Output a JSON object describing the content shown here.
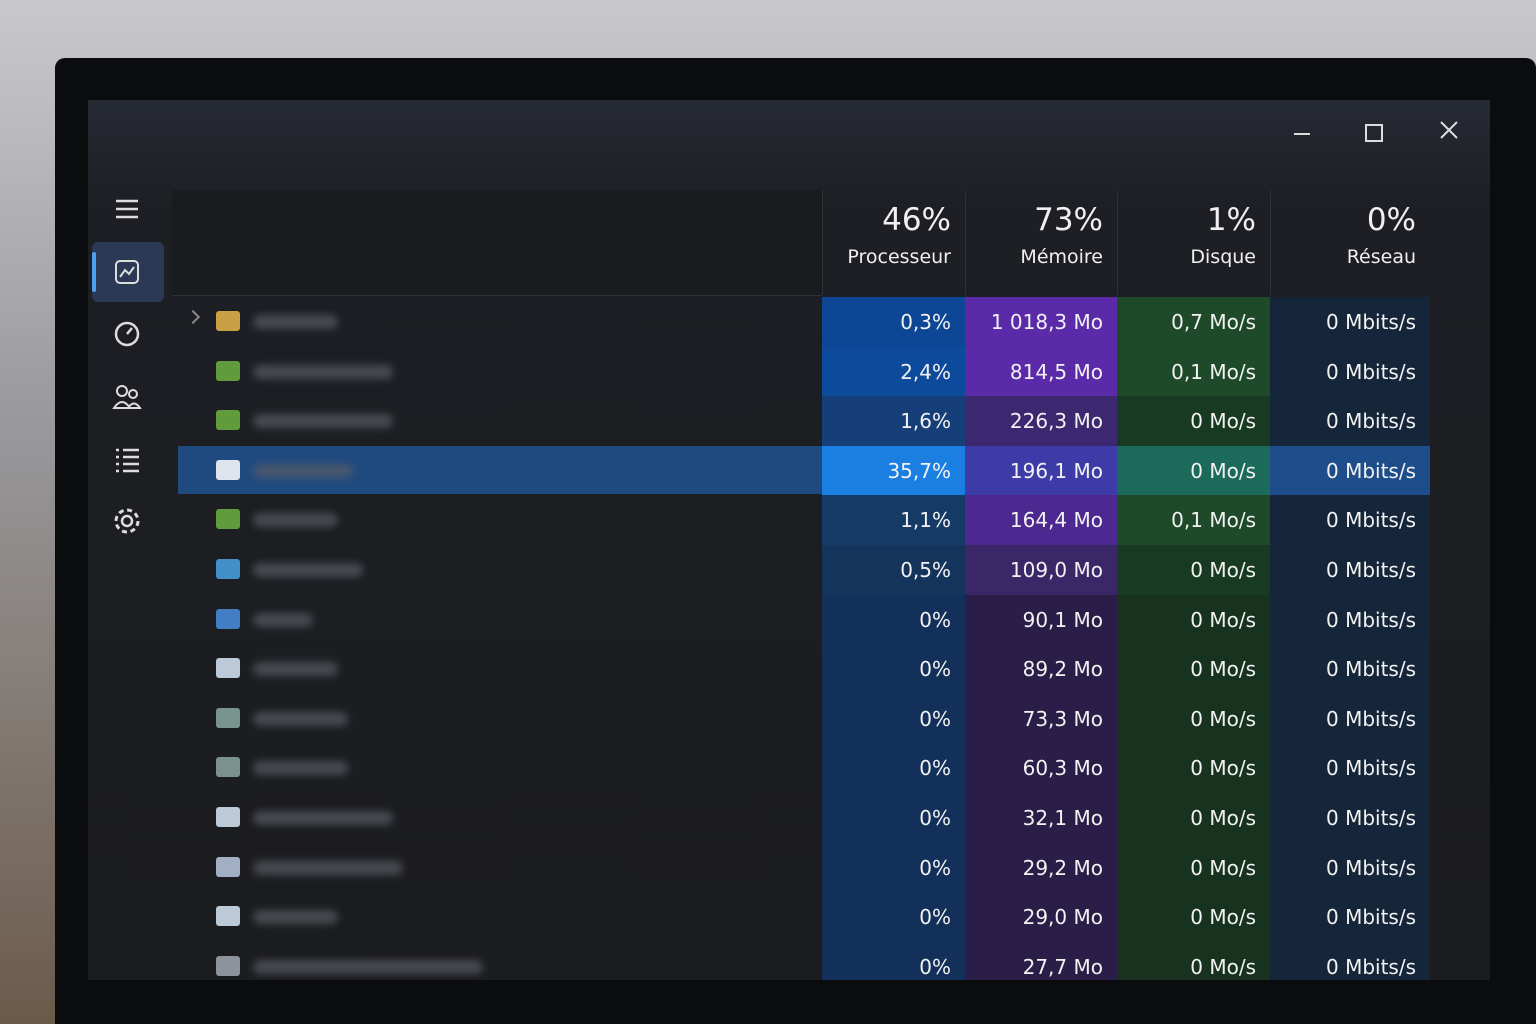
{
  "table": {
    "columns": [
      {
        "percent": "46%",
        "label": "Processeur"
      },
      {
        "percent": "73%",
        "label": "Mémoire"
      },
      {
        "percent": "1%",
        "label": "Disque"
      },
      {
        "percent": "0%",
        "label": "Réseau"
      }
    ],
    "rows": [
      [
        "0,3%",
        "1 018,3 Mo",
        "0,7 Mo/s",
        "0 Mbits/s"
      ],
      [
        "2,4%",
        "814,5 Mo",
        "0,1 Mo/s",
        "0 Mbits/s"
      ],
      [
        "1,6%",
        "226,3 Mo",
        "0 Mo/s",
        "0 Mbits/s"
      ],
      [
        "35,7%",
        "196,1 Mo",
        "0 Mo/s",
        "0 Mbits/s"
      ],
      [
        "1,1%",
        "164,4 Mo",
        "0,1 Mo/s",
        "0 Mbits/s"
      ],
      [
        "0,5%",
        "109,0 Mo",
        "0 Mo/s",
        "0 Mbits/s"
      ],
      [
        "0%",
        "90,1 Mo",
        "0 Mo/s",
        "0 Mbits/s"
      ],
      [
        "0%",
        "89,2 Mo",
        "0 Mo/s",
        "0 Mbits/s"
      ],
      [
        "0%",
        "73,3 Mo",
        "0 Mo/s",
        "0 Mbits/s"
      ],
      [
        "0%",
        "60,3 Mo",
        "0 Mo/s",
        "0 Mbits/s"
      ],
      [
        "0%",
        "32,1 Mo",
        "0 Mo/s",
        "0 Mbits/s"
      ],
      [
        "0%",
        "29,2 Mo",
        "0 Mo/s",
        "0 Mbits/s"
      ],
      [
        "0%",
        "29,0 Mo",
        "0 Mo/s",
        "0 Mbits/s"
      ],
      [
        "0%",
        "27,7 Mo",
        "0 Mo/s",
        "0 Mbits/s"
      ]
    ]
  }
}
